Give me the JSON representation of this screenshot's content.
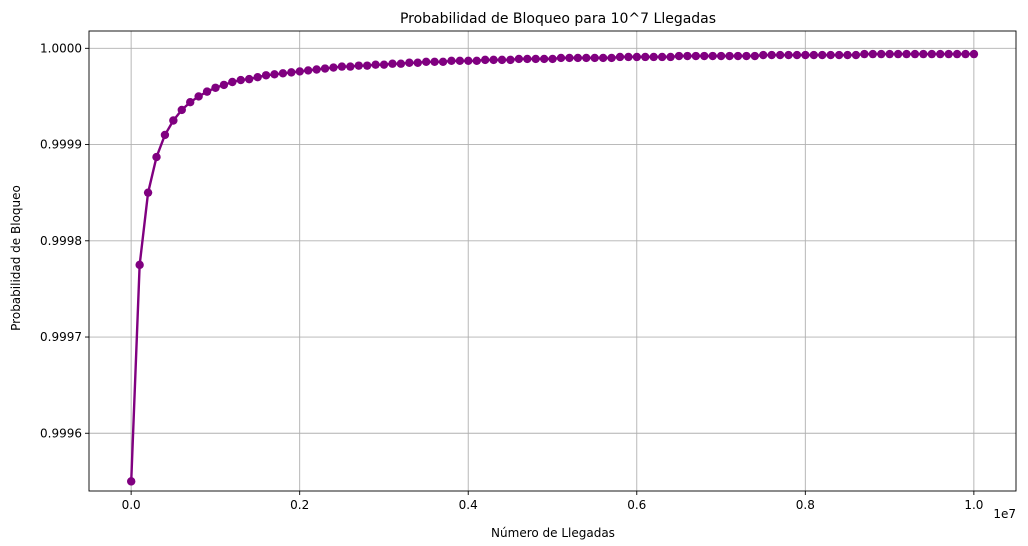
{
  "chart_data": {
    "type": "line",
    "title": "Probabilidad de Bloqueo para 10^7 Llegadas",
    "xlabel": "Número de Llegadas",
    "ylabel": "Probabilidad de Bloqueo",
    "x_offset_text": "1e7",
    "x_scale": 10000000,
    "xlim": [
      -500000,
      10500000
    ],
    "ylim": [
      0.99954,
      1.000018
    ],
    "x_ticks": [
      0,
      2000000,
      4000000,
      6000000,
      8000000,
      10000000
    ],
    "x_tick_labels": [
      "0.0",
      "0.2",
      "0.4",
      "0.6",
      "0.8",
      "1.0"
    ],
    "y_ticks": [
      0.9996,
      0.9997,
      0.9998,
      0.9999,
      1.0
    ],
    "y_tick_labels": [
      "0.9996",
      "0.9997",
      "0.9998",
      "0.9999",
      "1.0000"
    ],
    "grid": true,
    "color": "#800080",
    "marker": "circle",
    "series": [
      {
        "x_start": 1000,
        "x_step": 100000,
        "values": [
          0.99955,
          0.999775,
          0.99985,
          0.999887,
          0.99991,
          0.999925,
          0.999936,
          0.999944,
          0.99995,
          0.999955,
          0.999959,
          0.999962,
          0.999965,
          0.999967,
          0.999968,
          0.99997,
          0.999972,
          0.999973,
          0.999974,
          0.999975,
          0.999976,
          0.999977,
          0.999978,
          0.999979,
          0.99998,
          0.999981,
          0.999981,
          0.999982,
          0.999982,
          0.999983,
          0.999983,
          0.999984,
          0.999984,
          0.999985,
          0.999985,
          0.999986,
          0.999986,
          0.999986,
          0.999987,
          0.999987,
          0.999987,
          0.999987,
          0.999988,
          0.999988,
          0.999988,
          0.999988,
          0.999989,
          0.999989,
          0.999989,
          0.999989,
          0.999989,
          0.99999,
          0.99999,
          0.99999,
          0.99999,
          0.99999,
          0.99999,
          0.99999,
          0.999991,
          0.999991,
          0.999991,
          0.999991,
          0.999991,
          0.999991,
          0.999991,
          0.999992,
          0.999992,
          0.999992,
          0.999992,
          0.999992,
          0.999992,
          0.999992,
          0.999992,
          0.999992,
          0.999992,
          0.999993,
          0.999993,
          0.999993,
          0.999993,
          0.999993,
          0.999993,
          0.999993,
          0.999993,
          0.999993,
          0.999993,
          0.999993,
          0.999993,
          0.999994,
          0.999994,
          0.999994,
          0.999994,
          0.999994,
          0.999994,
          0.999994,
          0.999994,
          0.999994,
          0.999994,
          0.999994,
          0.999994,
          0.999994,
          0.999994
        ]
      }
    ]
  }
}
